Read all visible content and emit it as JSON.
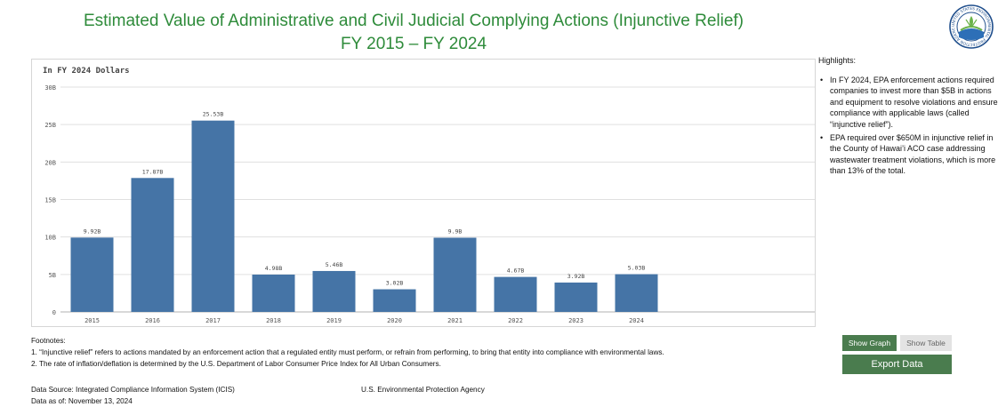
{
  "header": {
    "title_line1": "Estimated Value of Administrative and Civil Judicial Complying Actions (Injunctive Relief)",
    "title_line2": "FY 2015 – FY 2024"
  },
  "colors": {
    "bar": "#4574a6",
    "title": "#2e8b3a",
    "button_active": "#4a7c4e",
    "button_inactive": "#e3e3e3",
    "grid": "#e0e0e0"
  },
  "chart_data": {
    "type": "bar",
    "subtitle": "In FY 2024 Dollars",
    "categories": [
      "2015",
      "2016",
      "2017",
      "2018",
      "2019",
      "2020",
      "2021",
      "2022",
      "2023",
      "2024"
    ],
    "values": [
      9.92,
      17.87,
      25.53,
      4.98,
      5.46,
      3.02,
      9.9,
      4.67,
      3.92,
      5.03
    ],
    "data_labels": [
      "9.92B",
      "17.87B",
      "25.53B",
      "4.98B",
      "5.46B",
      "3.02B",
      "9.9B",
      "4.67B",
      "3.92B",
      "5.03B"
    ],
    "y_ticks": [
      0,
      5,
      10,
      15,
      20,
      25,
      30
    ],
    "y_tick_labels": [
      "0",
      "5B",
      "10B",
      "15B",
      "20B",
      "25B",
      "30B"
    ],
    "ylim": [
      0,
      30
    ],
    "grid": true,
    "legend": "none",
    "unit": "B"
  },
  "highlights": {
    "heading": "Highlights:",
    "items": [
      "In FY 2024, EPA enforcement actions required companies to invest more than $5B in actions and equipment to resolve violations and ensure compliance with applicable laws (called “injunctive relief”).",
      "EPA required over $650M in injunctive relief in the County of Hawai’i ACO case addressing wastewater treatment violations, which is more than 13% of the total."
    ]
  },
  "footnotes": {
    "heading": "Footnotes:",
    "note1": "1. “Injunctive relief” refers to actions mandated by an enforcement action that a regulated entity must perform, or refrain from performing, to bring that entity into compliance with environmental laws.",
    "note2": "2. The rate of inflation/deflation is determined by the U.S. Department of Labor Consumer Price Index for All Urban Consumers."
  },
  "source": {
    "data_source": "Data Source: Integrated Compliance Information System (ICIS)",
    "data_as_of": "Data as of: November 13, 2024",
    "agency": "U.S. Environmental Protection Agency"
  },
  "controls": {
    "show_graph": "Show Graph",
    "show_table": "Show Table",
    "export": "Export Data"
  },
  "seal": {
    "icon": "epa-seal-icon",
    "ring_text": "UNITED STATES ENVIRONMENTAL PROTECTION AGENCY"
  }
}
